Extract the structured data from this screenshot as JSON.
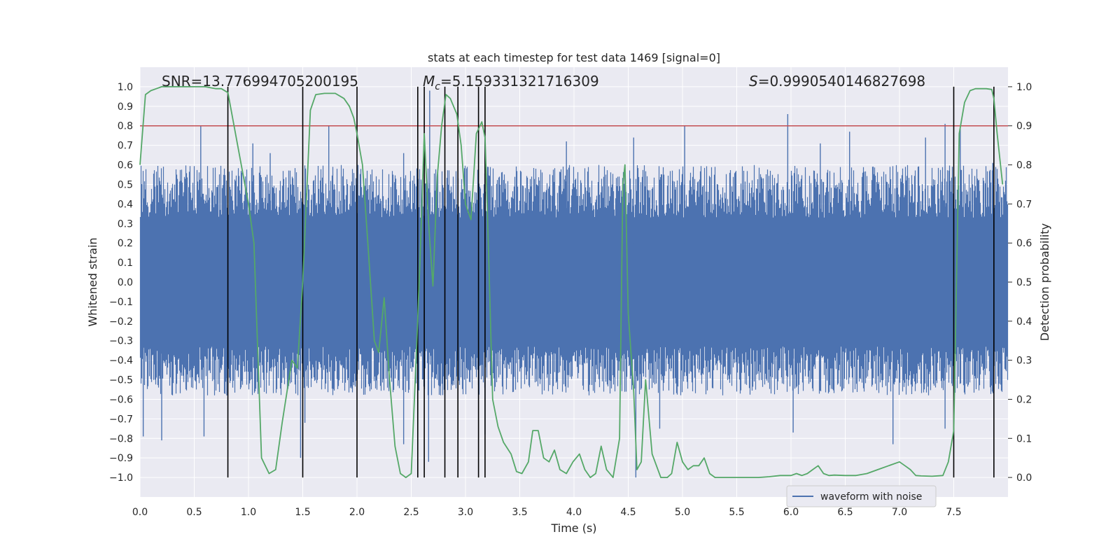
{
  "chart_data": {
    "type": "line",
    "title": "stats at each timestep for test data 1469 [signal=0]",
    "xlabel": "Time (s)",
    "ylabel": "Whitened strain",
    "ylabel_right": "Detection probability",
    "xlim": [
      0.0,
      8.0
    ],
    "ylim": [
      -1.1,
      1.1
    ],
    "ylim_right": [
      -0.05,
      1.05
    ],
    "xticks": [
      "0.0",
      "0.5",
      "1.0",
      "1.5",
      "2.0",
      "2.5",
      "3.0",
      "3.5",
      "4.0",
      "4.5",
      "5.0",
      "5.5",
      "6.0",
      "6.5",
      "7.0",
      "7.5"
    ],
    "yticks": [
      "1.0",
      "0.9",
      "0.8",
      "0.7",
      "0.6",
      "0.5",
      "0.4",
      "0.3",
      "0.2",
      "0.1",
      "0.0",
      "−0.1",
      "−0.2",
      "−0.3",
      "−0.4",
      "−0.5",
      "−0.6",
      "−0.7",
      "−0.8",
      "−0.9",
      "−1.0"
    ],
    "yticks_right": [
      "1.0",
      "0.9",
      "0.8",
      "0.7",
      "0.6",
      "0.5",
      "0.4",
      "0.3",
      "0.2",
      "0.1",
      "0.0"
    ],
    "annotations": {
      "snr": "SNR=13.776994705200195",
      "mc_symbol": "M",
      "mc_sub": "c",
      "mc_value": "=5.159331321716309",
      "s_symbol": "S",
      "s_value": "=0.9990540146827698"
    },
    "legend": {
      "label": "waveform with noise",
      "location": "lower right"
    },
    "threshold": {
      "value": 0.9,
      "axis": "right"
    },
    "vlines_x": [
      0.81,
      1.5,
      2.0,
      2.56,
      2.62,
      2.81,
      2.93,
      3.12,
      3.18,
      7.5,
      7.87
    ],
    "waveform": {
      "name": "waveform with noise",
      "note": "dense noise series; representative envelope extremes",
      "spikes_up": [
        [
          0.56,
          0.8
        ],
        [
          1.04,
          0.71
        ],
        [
          1.2,
          0.66
        ],
        [
          1.74,
          0.8
        ],
        [
          2.43,
          0.66
        ],
        [
          2.62,
          0.75
        ],
        [
          2.67,
          0.98
        ],
        [
          3.18,
          0.72
        ],
        [
          3.93,
          0.72
        ],
        [
          4.55,
          0.74
        ],
        [
          5.02,
          0.8
        ],
        [
          5.97,
          0.86
        ],
        [
          6.27,
          0.71
        ],
        [
          6.54,
          0.77
        ],
        [
          7.24,
          0.74
        ],
        [
          7.42,
          0.81
        ],
        [
          7.56,
          0.79
        ],
        [
          7.86,
          0.61
        ]
      ],
      "spikes_down": [
        [
          0.03,
          -0.79
        ],
        [
          0.2,
          -0.81
        ],
        [
          0.59,
          -0.79
        ],
        [
          0.8,
          -0.58
        ],
        [
          1.48,
          -0.9
        ],
        [
          1.52,
          -0.72
        ],
        [
          2.43,
          -0.83
        ],
        [
          2.66,
          -0.92
        ],
        [
          3.18,
          -0.78
        ],
        [
          4.57,
          -1.0
        ],
        [
          4.79,
          -0.75
        ],
        [
          6.02,
          -0.77
        ],
        [
          6.94,
          -0.83
        ],
        [
          7.42,
          -0.75
        ]
      ]
    },
    "series": [
      {
        "name": "detection probability",
        "axis": "right",
        "color": "#55a868",
        "x": [
          0.0,
          0.05,
          0.1,
          0.15,
          0.2,
          0.3,
          0.4,
          0.5,
          0.6,
          0.7,
          0.75,
          0.81,
          0.9,
          1.0,
          1.05,
          1.12,
          1.19,
          1.25,
          1.31,
          1.4,
          1.45,
          1.5,
          1.57,
          1.62,
          1.7,
          1.8,
          1.88,
          1.93,
          1.97,
          2.0,
          2.05,
          2.1,
          2.16,
          2.2,
          2.25,
          2.3,
          2.35,
          2.4,
          2.45,
          2.5,
          2.55,
          2.58,
          2.62,
          2.66,
          2.7,
          2.74,
          2.78,
          2.82,
          2.86,
          2.92,
          2.96,
          3.0,
          3.05,
          3.1,
          3.15,
          3.18,
          3.2,
          3.25,
          3.3,
          3.35,
          3.42,
          3.47,
          3.52,
          3.58,
          3.62,
          3.67,
          3.72,
          3.77,
          3.82,
          3.87,
          3.93,
          3.99,
          4.05,
          4.1,
          4.15,
          4.2,
          4.25,
          4.3,
          4.36,
          4.42,
          4.45,
          4.47,
          4.5,
          4.55,
          4.58,
          4.62,
          4.66,
          4.72,
          4.8,
          4.86,
          4.9,
          4.95,
          5.0,
          5.05,
          5.1,
          5.15,
          5.2,
          5.25,
          5.3,
          5.4,
          5.5,
          5.6,
          5.7,
          5.8,
          5.9,
          6.0,
          6.05,
          6.1,
          6.15,
          6.2,
          6.25,
          6.3,
          6.35,
          6.4,
          6.5,
          6.6,
          6.7,
          6.8,
          6.9,
          7.0,
          7.05,
          7.1,
          7.15,
          7.2,
          7.3,
          7.4,
          7.45,
          7.5,
          7.55,
          7.6,
          7.65,
          7.7,
          7.8,
          7.85,
          7.87,
          7.9,
          7.95
        ],
        "y": [
          0.8,
          0.98,
          0.99,
          0.995,
          1.0,
          1.0,
          1.0,
          1.0,
          1.0,
          0.995,
          0.995,
          0.985,
          0.85,
          0.7,
          0.6,
          0.05,
          0.01,
          0.02,
          0.14,
          0.3,
          0.28,
          0.5,
          0.94,
          0.98,
          0.983,
          0.983,
          0.97,
          0.95,
          0.92,
          0.88,
          0.8,
          0.6,
          0.35,
          0.32,
          0.46,
          0.25,
          0.08,
          0.01,
          0.0,
          0.01,
          0.34,
          0.55,
          0.88,
          0.65,
          0.49,
          0.77,
          0.9,
          0.98,
          0.97,
          0.93,
          0.85,
          0.7,
          0.66,
          0.88,
          0.91,
          0.87,
          0.7,
          0.2,
          0.13,
          0.09,
          0.06,
          0.015,
          0.01,
          0.04,
          0.12,
          0.12,
          0.05,
          0.04,
          0.07,
          0.02,
          0.01,
          0.04,
          0.06,
          0.02,
          0.0,
          0.01,
          0.08,
          0.02,
          0.0,
          0.1,
          0.75,
          0.8,
          0.42,
          0.22,
          0.02,
          0.04,
          0.25,
          0.06,
          0.0,
          0.0,
          0.01,
          0.09,
          0.04,
          0.02,
          0.03,
          0.03,
          0.05,
          0.01,
          0.0,
          0.0,
          0.0,
          0.0,
          0.0,
          0.002,
          0.005,
          0.005,
          0.01,
          0.005,
          0.01,
          0.02,
          0.03,
          0.01,
          0.005,
          0.006,
          0.005,
          0.005,
          0.01,
          0.02,
          0.03,
          0.04,
          0.03,
          0.02,
          0.005,
          0.004,
          0.003,
          0.005,
          0.04,
          0.12,
          0.88,
          0.96,
          0.99,
          0.995,
          0.995,
          0.993,
          0.97,
          0.88,
          0.75
        ]
      }
    ]
  }
}
